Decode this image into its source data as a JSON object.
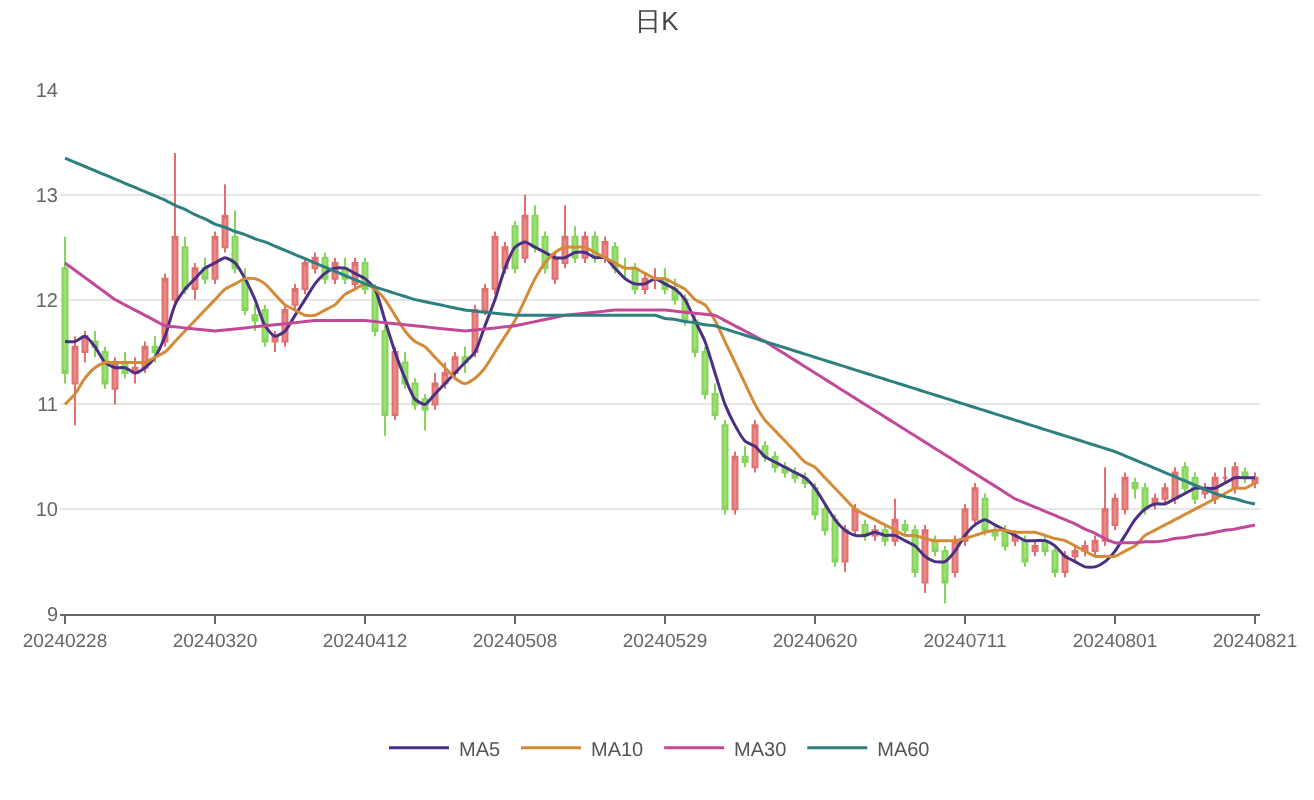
{
  "chart_data": {
    "type": "candlestick",
    "title": "日K",
    "categories": [
      "20240228",
      null,
      null,
      null,
      null,
      null,
      null,
      null,
      null,
      null,
      null,
      null,
      null,
      null,
      null,
      "20240320",
      null,
      null,
      null,
      null,
      null,
      null,
      null,
      null,
      null,
      null,
      null,
      null,
      null,
      null,
      "20240412",
      null,
      null,
      null,
      null,
      null,
      null,
      null,
      null,
      null,
      null,
      null,
      null,
      null,
      null,
      "20240508",
      null,
      null,
      null,
      null,
      null,
      null,
      null,
      null,
      null,
      null,
      null,
      null,
      null,
      null,
      "20240529",
      null,
      null,
      null,
      null,
      null,
      null,
      null,
      null,
      null,
      null,
      null,
      null,
      null,
      null,
      "20240620",
      null,
      null,
      null,
      null,
      null,
      null,
      null,
      null,
      null,
      null,
      null,
      null,
      null,
      null,
      "20240711",
      null,
      null,
      null,
      null,
      null,
      null,
      null,
      null,
      null,
      null,
      null,
      null,
      null,
      null,
      "20240801",
      null,
      null,
      null,
      null,
      null,
      null,
      null,
      null,
      null,
      null,
      null,
      null,
      null,
      "20240821"
    ],
    "ohlc": [
      [
        12.3,
        12.6,
        11.2,
        11.3
      ],
      [
        11.2,
        11.65,
        10.8,
        11.55
      ],
      [
        11.5,
        11.7,
        11.4,
        11.65
      ],
      [
        11.6,
        11.7,
        11.45,
        11.55
      ],
      [
        11.5,
        11.55,
        11.15,
        11.2
      ],
      [
        11.15,
        11.45,
        11.0,
        11.4
      ],
      [
        11.4,
        11.5,
        11.25,
        11.3
      ],
      [
        11.3,
        11.45,
        11.2,
        11.35
      ],
      [
        11.35,
        11.6,
        11.3,
        11.55
      ],
      [
        11.55,
        11.65,
        11.4,
        11.5
      ],
      [
        11.6,
        12.25,
        11.55,
        12.2
      ],
      [
        12.0,
        13.4,
        11.95,
        12.6
      ],
      [
        12.5,
        12.6,
        12.05,
        12.1
      ],
      [
        12.1,
        12.35,
        12.0,
        12.3
      ],
      [
        12.3,
        12.4,
        12.15,
        12.2
      ],
      [
        12.2,
        12.65,
        12.15,
        12.6
      ],
      [
        12.5,
        13.1,
        12.45,
        12.8
      ],
      [
        12.6,
        12.85,
        12.25,
        12.3
      ],
      [
        12.2,
        12.3,
        11.85,
        11.9
      ],
      [
        11.85,
        11.95,
        11.7,
        11.8
      ],
      [
        11.9,
        11.95,
        11.55,
        11.6
      ],
      [
        11.6,
        11.7,
        11.5,
        11.65
      ],
      [
        11.6,
        11.95,
        11.55,
        11.9
      ],
      [
        11.95,
        12.15,
        11.9,
        12.1
      ],
      [
        12.1,
        12.4,
        12.05,
        12.35
      ],
      [
        12.3,
        12.45,
        12.25,
        12.4
      ],
      [
        12.4,
        12.45,
        12.15,
        12.2
      ],
      [
        12.2,
        12.4,
        12.15,
        12.35
      ],
      [
        12.3,
        12.4,
        12.15,
        12.2
      ],
      [
        12.15,
        12.4,
        12.1,
        12.35
      ],
      [
        12.35,
        12.4,
        12.05,
        12.1
      ],
      [
        12.1,
        12.15,
        11.65,
        11.7
      ],
      [
        11.7,
        11.75,
        10.7,
        10.9
      ],
      [
        10.9,
        11.55,
        10.85,
        11.5
      ],
      [
        11.4,
        11.5,
        11.15,
        11.2
      ],
      [
        11.2,
        11.25,
        10.95,
        11.0
      ],
      [
        11.05,
        11.1,
        10.75,
        10.95
      ],
      [
        11.0,
        11.3,
        10.95,
        11.2
      ],
      [
        11.2,
        11.4,
        11.15,
        11.3
      ],
      [
        11.3,
        11.5,
        11.25,
        11.45
      ],
      [
        11.45,
        11.55,
        11.3,
        11.4
      ],
      [
        11.5,
        11.95,
        11.45,
        11.9
      ],
      [
        11.9,
        12.15,
        11.85,
        12.1
      ],
      [
        12.1,
        12.65,
        12.05,
        12.6
      ],
      [
        12.3,
        12.55,
        12.25,
        12.5
      ],
      [
        12.7,
        12.75,
        12.25,
        12.3
      ],
      [
        12.4,
        13.0,
        12.35,
        12.8
      ],
      [
        12.8,
        12.9,
        12.45,
        12.5
      ],
      [
        12.6,
        12.65,
        12.25,
        12.3
      ],
      [
        12.2,
        12.45,
        12.15,
        12.4
      ],
      [
        12.35,
        12.9,
        12.3,
        12.6
      ],
      [
        12.6,
        12.7,
        12.35,
        12.4
      ],
      [
        12.4,
        12.65,
        12.35,
        12.6
      ],
      [
        12.6,
        12.65,
        12.35,
        12.4
      ],
      [
        12.4,
        12.6,
        12.35,
        12.55
      ],
      [
        12.5,
        12.55,
        12.25,
        12.3
      ],
      [
        12.3,
        12.4,
        12.2,
        12.3
      ],
      [
        12.3,
        12.35,
        12.05,
        12.1
      ],
      [
        12.1,
        12.25,
        12.05,
        12.2
      ],
      [
        12.2,
        12.3,
        12.1,
        12.2
      ],
      [
        12.2,
        12.3,
        12.05,
        12.1
      ],
      [
        12.1,
        12.2,
        11.95,
        12.0
      ],
      [
        12.0,
        12.05,
        11.75,
        11.8
      ],
      [
        11.8,
        11.85,
        11.45,
        11.5
      ],
      [
        11.5,
        11.55,
        11.05,
        11.1
      ],
      [
        11.1,
        11.2,
        10.85,
        10.9
      ],
      [
        10.8,
        10.85,
        9.95,
        10.0
      ],
      [
        10.0,
        10.55,
        9.95,
        10.5
      ],
      [
        10.5,
        10.6,
        10.4,
        10.45
      ],
      [
        10.4,
        10.85,
        10.35,
        10.8
      ],
      [
        10.6,
        10.65,
        10.45,
        10.5
      ],
      [
        10.5,
        10.55,
        10.35,
        10.4
      ],
      [
        10.4,
        10.45,
        10.3,
        10.35
      ],
      [
        10.35,
        10.4,
        10.25,
        10.3
      ],
      [
        10.3,
        10.35,
        10.2,
        10.25
      ],
      [
        10.2,
        10.25,
        9.9,
        9.95
      ],
      [
        10.0,
        10.05,
        9.75,
        9.8
      ],
      [
        9.9,
        9.95,
        9.45,
        9.5
      ],
      [
        9.5,
        9.85,
        9.4,
        9.8
      ],
      [
        9.8,
        10.05,
        9.75,
        10.0
      ],
      [
        9.85,
        9.9,
        9.7,
        9.75
      ],
      [
        9.75,
        9.85,
        9.7,
        9.8
      ],
      [
        9.8,
        9.85,
        9.65,
        9.7
      ],
      [
        9.7,
        10.1,
        9.65,
        9.9
      ],
      [
        9.85,
        9.9,
        9.75,
        9.8
      ],
      [
        9.8,
        9.85,
        9.35,
        9.4
      ],
      [
        9.3,
        9.85,
        9.2,
        9.8
      ],
      [
        9.7,
        9.75,
        9.55,
        9.6
      ],
      [
        9.6,
        9.65,
        9.1,
        9.3
      ],
      [
        9.4,
        9.75,
        9.35,
        9.7
      ],
      [
        9.7,
        10.05,
        9.65,
        10.0
      ],
      [
        9.9,
        10.25,
        9.85,
        10.2
      ],
      [
        10.1,
        10.15,
        9.75,
        9.8
      ],
      [
        9.8,
        9.85,
        9.7,
        9.75
      ],
      [
        9.8,
        9.85,
        9.6,
        9.65
      ],
      [
        9.7,
        9.8,
        9.65,
        9.75
      ],
      [
        9.7,
        9.75,
        9.45,
        9.5
      ],
      [
        9.6,
        9.7,
        9.55,
        9.65
      ],
      [
        9.7,
        9.75,
        9.55,
        9.6
      ],
      [
        9.6,
        9.65,
        9.35,
        9.4
      ],
      [
        9.4,
        9.6,
        9.35,
        9.55
      ],
      [
        9.55,
        9.65,
        9.5,
        9.6
      ],
      [
        9.6,
        9.7,
        9.55,
        9.65
      ],
      [
        9.6,
        9.75,
        9.55,
        9.7
      ],
      [
        9.7,
        10.4,
        9.65,
        10.0
      ],
      [
        9.85,
        10.15,
        9.8,
        10.1
      ],
      [
        10.0,
        10.35,
        9.95,
        10.3
      ],
      [
        10.25,
        10.3,
        10.1,
        10.2
      ],
      [
        10.2,
        10.25,
        9.95,
        10.0
      ],
      [
        10.05,
        10.15,
        10.0,
        10.1
      ],
      [
        10.1,
        10.25,
        10.05,
        10.2
      ],
      [
        10.1,
        10.4,
        10.05,
        10.35
      ],
      [
        10.4,
        10.45,
        10.15,
        10.2
      ],
      [
        10.3,
        10.35,
        10.05,
        10.1
      ],
      [
        10.15,
        10.25,
        10.1,
        10.2
      ],
      [
        10.1,
        10.35,
        10.05,
        10.3
      ],
      [
        10.3,
        10.4,
        10.25,
        10.3
      ],
      [
        10.2,
        10.45,
        10.15,
        10.4
      ],
      [
        10.35,
        10.4,
        10.25,
        10.3
      ],
      [
        10.25,
        10.35,
        10.2,
        10.3
      ]
    ],
    "series": [
      {
        "name": "MA5",
        "type": "line",
        "color": "#4b2f84",
        "values": [
          11.6,
          11.6,
          11.65,
          11.55,
          11.4,
          11.35,
          11.35,
          11.3,
          11.35,
          11.45,
          11.65,
          11.95,
          12.1,
          12.2,
          12.3,
          12.35,
          12.4,
          12.35,
          12.2,
          12.0,
          11.75,
          11.65,
          11.7,
          11.85,
          12.0,
          12.15,
          12.25,
          12.3,
          12.3,
          12.25,
          12.2,
          12.1,
          11.8,
          11.5,
          11.25,
          11.05,
          11.0,
          11.1,
          11.2,
          11.3,
          11.4,
          11.5,
          11.75,
          12.0,
          12.3,
          12.5,
          12.55,
          12.5,
          12.45,
          12.4,
          12.4,
          12.45,
          12.45,
          12.4,
          12.4,
          12.3,
          12.2,
          12.15,
          12.15,
          12.2,
          12.15,
          12.1,
          12.0,
          11.8,
          11.6,
          11.3,
          11.0,
          10.8,
          10.65,
          10.6,
          10.5,
          10.45,
          10.4,
          10.35,
          10.3,
          10.2,
          10.05,
          9.9,
          9.8,
          9.75,
          9.75,
          9.78,
          9.75,
          9.75,
          9.7,
          9.65,
          9.55,
          9.5,
          9.5,
          9.6,
          9.75,
          9.85,
          9.9,
          9.85,
          9.8,
          9.75,
          9.7,
          9.7,
          9.7,
          9.65,
          9.55,
          9.5,
          9.45,
          9.45,
          9.5,
          9.6,
          9.75,
          9.9,
          10.0,
          10.05,
          10.05,
          10.1,
          10.15,
          10.2,
          10.2,
          10.2,
          10.25,
          10.3,
          10.3,
          10.3
        ]
      },
      {
        "name": "MA10",
        "type": "line",
        "color": "#d48a36",
        "values": [
          11.0,
          11.1,
          11.25,
          11.35,
          11.4,
          11.4,
          11.4,
          11.4,
          11.4,
          11.45,
          11.5,
          11.6,
          11.7,
          11.8,
          11.9,
          12.0,
          12.1,
          12.15,
          12.2,
          12.2,
          12.15,
          12.05,
          11.95,
          11.9,
          11.85,
          11.85,
          11.9,
          11.95,
          12.05,
          12.1,
          12.15,
          12.1,
          12.0,
          11.85,
          11.7,
          11.6,
          11.55,
          11.45,
          11.35,
          11.25,
          11.2,
          11.25,
          11.35,
          11.5,
          11.65,
          11.8,
          12.0,
          12.2,
          12.35,
          12.45,
          12.5,
          12.5,
          12.5,
          12.45,
          12.4,
          12.35,
          12.3,
          12.3,
          12.25,
          12.2,
          12.2,
          12.15,
          12.1,
          12.0,
          11.95,
          11.8,
          11.6,
          11.4,
          11.2,
          11.0,
          10.85,
          10.75,
          10.65,
          10.55,
          10.45,
          10.4,
          10.3,
          10.2,
          10.1,
          10.0,
          9.95,
          9.9,
          9.85,
          9.8,
          9.75,
          9.75,
          9.72,
          9.7,
          9.7,
          9.7,
          9.72,
          9.75,
          9.78,
          9.8,
          9.8,
          9.78,
          9.78,
          9.78,
          9.75,
          9.72,
          9.7,
          9.65,
          9.6,
          9.55,
          9.55,
          9.55,
          9.6,
          9.65,
          9.75,
          9.8,
          9.85,
          9.9,
          9.95,
          10.0,
          10.05,
          10.1,
          10.15,
          10.2,
          10.2,
          10.25
        ]
      },
      {
        "name": "MA30",
        "type": "line",
        "color": "#c2489a",
        "values": [
          12.35,
          12.28,
          12.21,
          12.14,
          12.07,
          12.0,
          11.95,
          11.9,
          11.85,
          11.8,
          11.75,
          11.74,
          11.73,
          11.72,
          11.71,
          11.7,
          11.71,
          11.72,
          11.73,
          11.74,
          11.75,
          11.76,
          11.77,
          11.78,
          11.79,
          11.8,
          11.8,
          11.8,
          11.8,
          11.8,
          11.8,
          11.79,
          11.78,
          11.77,
          11.76,
          11.75,
          11.74,
          11.73,
          11.72,
          11.71,
          11.7,
          11.71,
          11.72,
          11.73,
          11.74,
          11.75,
          11.77,
          11.79,
          11.81,
          11.83,
          11.85,
          11.86,
          11.87,
          11.88,
          11.89,
          11.9,
          11.9,
          11.9,
          11.9,
          11.9,
          11.9,
          11.89,
          11.88,
          11.87,
          11.86,
          11.85,
          11.8,
          11.75,
          11.7,
          11.65,
          11.6,
          11.54,
          11.48,
          11.42,
          11.36,
          11.3,
          11.24,
          11.18,
          11.12,
          11.06,
          11.0,
          10.94,
          10.88,
          10.82,
          10.76,
          10.7,
          10.64,
          10.58,
          10.52,
          10.46,
          10.4,
          10.34,
          10.28,
          10.22,
          10.16,
          10.1,
          10.06,
          10.02,
          9.98,
          9.94,
          9.9,
          9.86,
          9.81,
          9.77,
          9.72,
          9.68,
          9.68,
          9.68,
          9.69,
          9.69,
          9.7,
          9.72,
          9.73,
          9.75,
          9.76,
          9.78,
          9.8,
          9.81,
          9.83,
          9.85
        ]
      },
      {
        "name": "MA60",
        "type": "line",
        "color": "#2e8080",
        "values": [
          13.35,
          13.31,
          13.27,
          13.23,
          13.19,
          13.15,
          13.11,
          13.07,
          13.03,
          12.99,
          12.95,
          12.9,
          12.86,
          12.81,
          12.77,
          12.72,
          12.69,
          12.65,
          12.62,
          12.58,
          12.55,
          12.51,
          12.47,
          12.43,
          12.39,
          12.35,
          12.31,
          12.27,
          12.23,
          12.19,
          12.15,
          12.12,
          12.09,
          12.06,
          12.03,
          12.0,
          11.98,
          11.96,
          11.94,
          11.92,
          11.9,
          11.89,
          11.88,
          11.87,
          11.86,
          11.85,
          11.85,
          11.85,
          11.85,
          11.85,
          11.85,
          11.85,
          11.85,
          11.85,
          11.85,
          11.85,
          11.85,
          11.85,
          11.85,
          11.85,
          11.82,
          11.81,
          11.79,
          11.78,
          11.76,
          11.75,
          11.72,
          11.69,
          11.66,
          11.63,
          11.6,
          11.57,
          11.54,
          11.51,
          11.48,
          11.45,
          11.42,
          11.39,
          11.36,
          11.33,
          11.3,
          11.27,
          11.24,
          11.21,
          11.18,
          11.15,
          11.12,
          11.09,
          11.06,
          11.03,
          11.0,
          10.97,
          10.94,
          10.91,
          10.88,
          10.85,
          10.82,
          10.79,
          10.76,
          10.73,
          10.7,
          10.67,
          10.64,
          10.61,
          10.58,
          10.55,
          10.51,
          10.47,
          10.43,
          10.39,
          10.35,
          10.31,
          10.27,
          10.23,
          10.19,
          10.15,
          10.12,
          10.1,
          10.07,
          10.05
        ]
      }
    ],
    "ylim": [
      9,
      14
    ],
    "yticks": [
      9,
      10,
      11,
      12,
      13,
      14
    ],
    "grid": "y",
    "legend": "bottom",
    "marker": "none",
    "line_style": "solid"
  }
}
